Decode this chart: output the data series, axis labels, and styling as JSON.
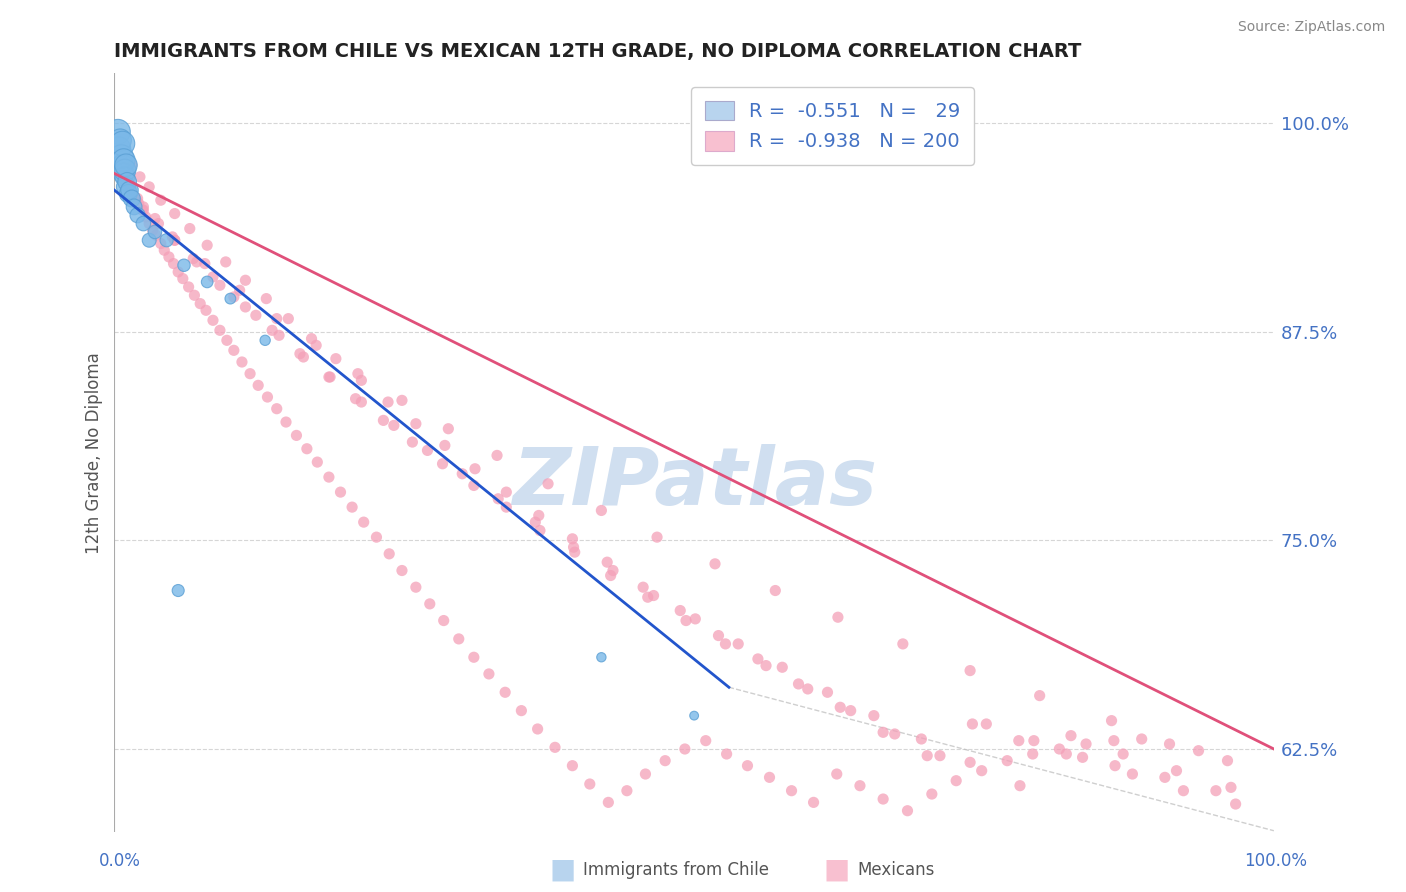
{
  "title": "IMMIGRANTS FROM CHILE VS MEXICAN 12TH GRADE, NO DIPLOMA CORRELATION CHART",
  "source": "Source: ZipAtlas.com",
  "ylabel": "12th Grade, No Diploma",
  "x_label_bottom_left": "0.0%",
  "x_label_bottom_right": "100.0%",
  "legend_entries": [
    {
      "label": "Immigrants from Chile",
      "R": -0.551,
      "N": 29
    },
    {
      "label": "Mexicans",
      "R": -0.938,
      "N": 200
    }
  ],
  "ytick_labels": [
    "62.5%",
    "75.0%",
    "87.5%",
    "100.0%"
  ],
  "ytick_values": [
    0.625,
    0.75,
    0.875,
    1.0
  ],
  "xlim": [
    0.0,
    1.0
  ],
  "ylim": [
    0.575,
    1.03
  ],
  "background_color": "#ffffff",
  "grid_color": "#bbbbbb",
  "title_color": "#222222",
  "axis_label_color": "#4472c4",
  "watermark_color": "#d0dff0",
  "chile_color": "#7ab8e8",
  "chile_edge_color": "#5a9fd4",
  "mexico_color": "#f4a0b8",
  "mexico_edge_color": "#e07090",
  "chile_line_color": "#2255cc",
  "mexico_line_color": "#e0507a",
  "diag_line_color": "#bbbbbb",
  "chile_line_x0": 0.0,
  "chile_line_y0": 0.96,
  "chile_line_x1": 0.53,
  "chile_line_y1": 0.662,
  "mexico_line_x0": 0.0,
  "mexico_line_y0": 0.97,
  "mexico_line_x1": 1.0,
  "mexico_line_y1": 0.625,
  "diag_line_x0": 0.53,
  "diag_line_y0": 0.662,
  "diag_line_x1": 1.0,
  "diag_line_y1": 0.576,
  "chile_x": [
    0.003,
    0.004,
    0.005,
    0.006,
    0.007,
    0.007,
    0.008,
    0.008,
    0.009,
    0.009,
    0.01,
    0.01,
    0.011,
    0.012,
    0.013,
    0.015,
    0.017,
    0.02,
    0.025,
    0.03,
    0.045,
    0.06,
    0.08,
    0.1,
    0.13,
    0.42,
    0.5,
    0.035,
    0.055
  ],
  "chile_y": [
    0.995,
    0.985,
    0.99,
    0.98,
    0.975,
    0.988,
    0.97,
    0.978,
    0.968,
    0.972,
    0.962,
    0.975,
    0.965,
    0.958,
    0.96,
    0.955,
    0.95,
    0.945,
    0.94,
    0.93,
    0.93,
    0.915,
    0.905,
    0.895,
    0.87,
    0.68,
    0.645,
    0.935,
    0.72
  ],
  "chile_sizes": [
    320,
    280,
    260,
    300,
    240,
    310,
    220,
    270,
    200,
    250,
    190,
    260,
    180,
    170,
    160,
    150,
    130,
    120,
    110,
    100,
    90,
    80,
    70,
    60,
    55,
    45,
    40,
    95,
    75
  ],
  "mexico_x": [
    0.01,
    0.012,
    0.015,
    0.017,
    0.019,
    0.021,
    0.024,
    0.027,
    0.03,
    0.033,
    0.036,
    0.04,
    0.043,
    0.047,
    0.051,
    0.055,
    0.059,
    0.064,
    0.069,
    0.074,
    0.079,
    0.085,
    0.091,
    0.097,
    0.103,
    0.11,
    0.117,
    0.124,
    0.132,
    0.14,
    0.148,
    0.157,
    0.166,
    0.175,
    0.185,
    0.195,
    0.205,
    0.215,
    0.226,
    0.237,
    0.248,
    0.26,
    0.272,
    0.284,
    0.297,
    0.31,
    0.323,
    0.337,
    0.351,
    0.365,
    0.38,
    0.395,
    0.41,
    0.426,
    0.442,
    0.458,
    0.475,
    0.492,
    0.51,
    0.528,
    0.546,
    0.565,
    0.584,
    0.603,
    0.623,
    0.643,
    0.663,
    0.684,
    0.705,
    0.726,
    0.748,
    0.77,
    0.792,
    0.815,
    0.838,
    0.862,
    0.886,
    0.91,
    0.935,
    0.96,
    0.015,
    0.022,
    0.03,
    0.04,
    0.052,
    0.065,
    0.08,
    0.096,
    0.113,
    0.131,
    0.15,
    0.17,
    0.191,
    0.213,
    0.236,
    0.26,
    0.285,
    0.311,
    0.338,
    0.366,
    0.395,
    0.425,
    0.456,
    0.488,
    0.521,
    0.555,
    0.59,
    0.626,
    0.663,
    0.701,
    0.74,
    0.78,
    0.821,
    0.863,
    0.906,
    0.95,
    0.013,
    0.025,
    0.038,
    0.052,
    0.068,
    0.085,
    0.103,
    0.122,
    0.142,
    0.163,
    0.185,
    0.208,
    0.232,
    0.257,
    0.283,
    0.31,
    0.338,
    0.367,
    0.397,
    0.428,
    0.46,
    0.493,
    0.527,
    0.562,
    0.598,
    0.635,
    0.673,
    0.712,
    0.752,
    0.793,
    0.835,
    0.878,
    0.922,
    0.967,
    0.02,
    0.035,
    0.052,
    0.071,
    0.091,
    0.113,
    0.136,
    0.16,
    0.186,
    0.213,
    0.241,
    0.27,
    0.3,
    0.331,
    0.363,
    0.396,
    0.43,
    0.465,
    0.501,
    0.538,
    0.576,
    0.615,
    0.655,
    0.696,
    0.738,
    0.781,
    0.825,
    0.87,
    0.916,
    0.963,
    0.025,
    0.05,
    0.078,
    0.108,
    0.14,
    0.174,
    0.21,
    0.248,
    0.288,
    0.33,
    0.374,
    0.42,
    0.468,
    0.518,
    0.57,
    0.624,
    0.68,
    0.738,
    0.798,
    0.86
  ],
  "mexico_y": [
    0.968,
    0.963,
    0.96,
    0.956,
    0.954,
    0.952,
    0.948,
    0.944,
    0.94,
    0.936,
    0.933,
    0.928,
    0.924,
    0.92,
    0.916,
    0.911,
    0.907,
    0.902,
    0.897,
    0.892,
    0.888,
    0.882,
    0.876,
    0.87,
    0.864,
    0.857,
    0.85,
    0.843,
    0.836,
    0.829,
    0.821,
    0.813,
    0.805,
    0.797,
    0.788,
    0.779,
    0.77,
    0.761,
    0.752,
    0.742,
    0.732,
    0.722,
    0.712,
    0.702,
    0.691,
    0.68,
    0.67,
    0.659,
    0.648,
    0.637,
    0.626,
    0.615,
    0.604,
    0.593,
    0.6,
    0.61,
    0.618,
    0.625,
    0.63,
    0.622,
    0.615,
    0.608,
    0.6,
    0.593,
    0.61,
    0.603,
    0.595,
    0.588,
    0.598,
    0.606,
    0.612,
    0.618,
    0.622,
    0.625,
    0.628,
    0.63,
    0.631,
    0.628,
    0.624,
    0.618,
    0.975,
    0.968,
    0.962,
    0.954,
    0.946,
    0.937,
    0.927,
    0.917,
    0.906,
    0.895,
    0.883,
    0.871,
    0.859,
    0.846,
    0.833,
    0.82,
    0.807,
    0.793,
    0.779,
    0.765,
    0.751,
    0.737,
    0.722,
    0.708,
    0.693,
    0.679,
    0.664,
    0.65,
    0.635,
    0.621,
    0.64,
    0.63,
    0.622,
    0.615,
    0.608,
    0.6,
    0.96,
    0.95,
    0.94,
    0.93,
    0.919,
    0.908,
    0.896,
    0.885,
    0.873,
    0.86,
    0.848,
    0.835,
    0.822,
    0.809,
    0.796,
    0.783,
    0.77,
    0.756,
    0.743,
    0.729,
    0.716,
    0.702,
    0.688,
    0.675,
    0.661,
    0.648,
    0.634,
    0.621,
    0.64,
    0.63,
    0.62,
    0.61,
    0.6,
    0.592,
    0.955,
    0.943,
    0.93,
    0.917,
    0.903,
    0.89,
    0.876,
    0.862,
    0.848,
    0.833,
    0.819,
    0.804,
    0.79,
    0.775,
    0.761,
    0.746,
    0.732,
    0.717,
    0.703,
    0.688,
    0.674,
    0.659,
    0.645,
    0.631,
    0.617,
    0.603,
    0.633,
    0.622,
    0.612,
    0.602,
    0.948,
    0.932,
    0.916,
    0.9,
    0.883,
    0.867,
    0.85,
    0.834,
    0.817,
    0.801,
    0.784,
    0.768,
    0.752,
    0.736,
    0.72,
    0.704,
    0.688,
    0.672,
    0.657,
    0.642
  ]
}
